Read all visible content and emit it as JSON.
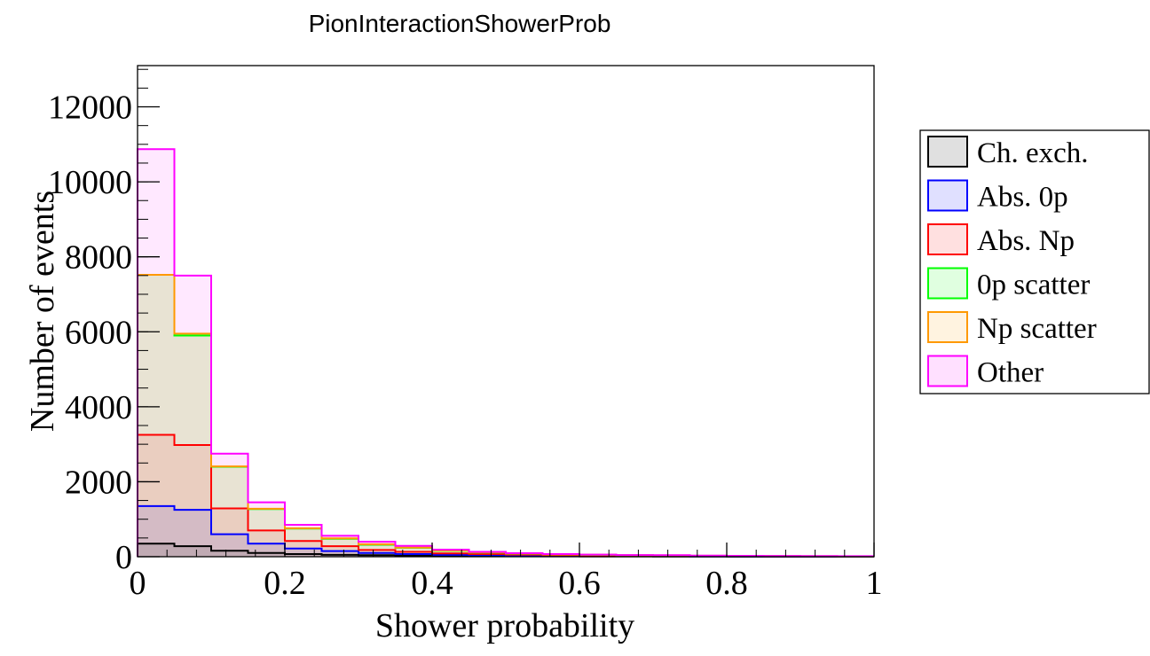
{
  "chart_data": {
    "type": "bar",
    "subtype": "stacked-histogram",
    "title": "PionInteractionShowerProb",
    "xlabel": "Shower probability",
    "ylabel": "Number of events",
    "xlim": [
      0,
      1
    ],
    "ylim": [
      0,
      13100
    ],
    "bin_width": 0.05,
    "bin_edges": [
      0,
      0.05,
      0.1,
      0.15,
      0.2,
      0.25,
      0.3,
      0.35,
      0.4,
      0.45,
      0.5,
      0.55,
      0.6,
      0.65,
      0.7,
      0.75,
      0.8,
      0.85,
      0.9,
      0.95,
      1.0
    ],
    "x_ticks": [
      0,
      0.2,
      0.4,
      0.6,
      0.8,
      1
    ],
    "x_tick_labels": [
      "0",
      "0.2",
      "0.4",
      "0.6",
      "0.8",
      "1"
    ],
    "y_ticks": [
      0,
      2000,
      4000,
      6000,
      8000,
      10000,
      12000
    ],
    "y_tick_labels": [
      "0",
      "2000",
      "4000",
      "6000",
      "8000",
      "10000",
      "12000"
    ],
    "grid": false,
    "legend_position": "right",
    "stack_totals_note": "cumulative stack heights (each series value is the top of its layer)",
    "series": [
      {
        "name": "Ch. exch.",
        "color": "#000000",
        "cumulative": [
          350,
          280,
          160,
          100,
          70,
          50,
          40,
          30,
          25,
          20,
          15,
          12,
          10,
          8,
          6,
          5,
          4,
          3,
          3,
          2
        ]
      },
      {
        "name": "Abs. 0p",
        "color": "#0000ff",
        "cumulative": [
          1350,
          1250,
          600,
          350,
          220,
          150,
          100,
          70,
          50,
          40,
          30,
          25,
          20,
          15,
          12,
          10,
          8,
          6,
          5,
          4
        ]
      },
      {
        "name": "Abs. Np",
        "color": "#ff0000",
        "cumulative": [
          3250,
          2980,
          1290,
          700,
          420,
          280,
          180,
          130,
          90,
          70,
          55,
          40,
          30,
          25,
          20,
          15,
          12,
          10,
          8,
          6
        ]
      },
      {
        "name": "0p scatter",
        "color": "#00ff00",
        "cumulative": [
          7520,
          5900,
          2400,
          1270,
          750,
          480,
          320,
          240,
          160,
          110,
          80,
          60,
          50,
          40,
          35,
          25,
          20,
          15,
          12,
          10
        ]
      },
      {
        "name": "Np scatter",
        "color": "#ff9900",
        "cumulative": [
          7520,
          5950,
          2410,
          1280,
          760,
          490,
          330,
          245,
          165,
          115,
          85,
          62,
          52,
          42,
          37,
          27,
          22,
          17,
          14,
          12
        ]
      },
      {
        "name": "Other",
        "color": "#ff00ff",
        "cumulative": [
          10870,
          7500,
          2750,
          1450,
          850,
          560,
          400,
          290,
          190,
          130,
          95,
          70,
          55,
          45,
          40,
          30,
          25,
          20,
          18,
          15
        ]
      }
    ]
  }
}
